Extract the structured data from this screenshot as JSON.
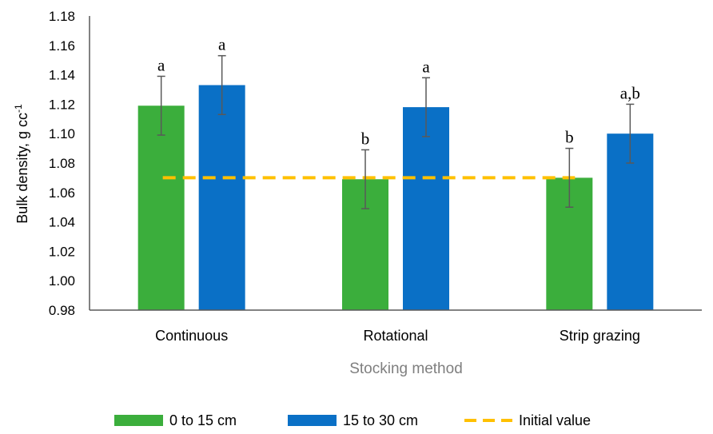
{
  "chart_data": {
    "type": "bar",
    "title": "",
    "xlabel": "Stocking method",
    "ylabel": "Bulk density, g cc",
    "ylabel_superscript": "-1",
    "ylim": [
      0.98,
      1.18
    ],
    "ytick_step": 0.02,
    "yticks": [
      "0.98",
      "1.00",
      "1.02",
      "1.04",
      "1.06",
      "1.08",
      "1.10",
      "1.12",
      "1.14",
      "1.16",
      "1.18"
    ],
    "categories": [
      "Continuous",
      "Rotational",
      "Strip grazing"
    ],
    "series": [
      {
        "name": "0 to 15 cm",
        "color": "#3bae3c",
        "values": [
          1.119,
          1.069,
          1.07
        ],
        "error": [
          0.02,
          0.02,
          0.02
        ],
        "labels": [
          "a",
          "b",
          "b"
        ]
      },
      {
        "name": "15 to 30 cm",
        "color": "#0a70c6",
        "values": [
          1.133,
          1.118,
          1.1
        ],
        "error": [
          0.02,
          0.02,
          0.02
        ],
        "labels": [
          "a",
          "a",
          "a,b"
        ]
      }
    ],
    "reference_line": {
      "name": "Initial value",
      "value": 1.07,
      "color": "#ffc000",
      "style": "dashed"
    },
    "grid": false,
    "legend_position": "bottom"
  }
}
